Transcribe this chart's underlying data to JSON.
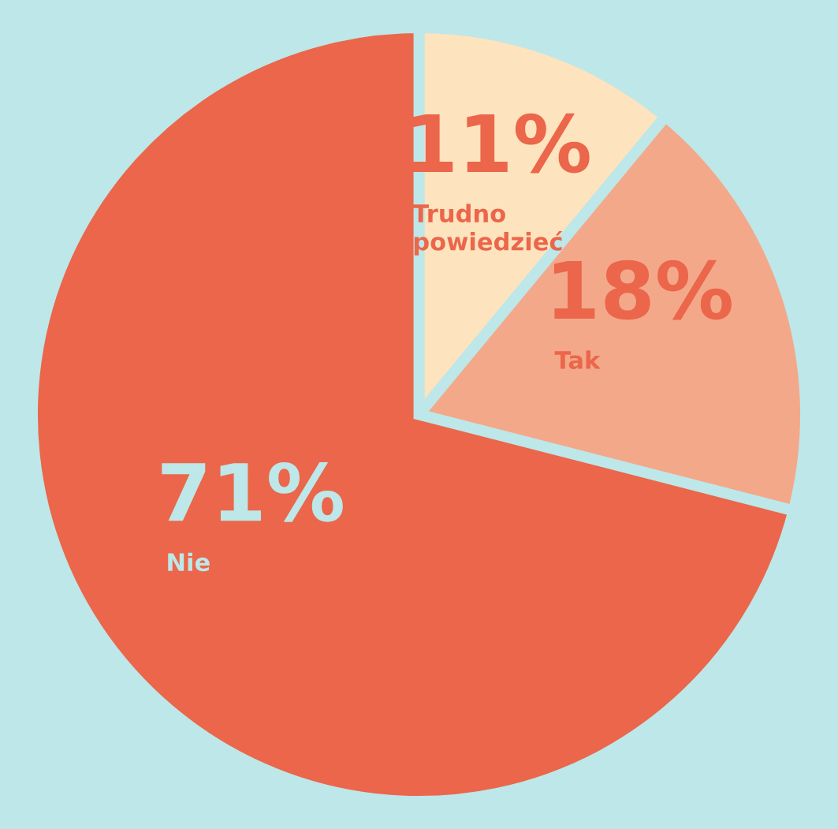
{
  "chart_data": {
    "type": "pie",
    "categories": [
      "Trudno powiedzieć",
      "Tak",
      "Nie"
    ],
    "values": [
      11,
      18,
      71
    ],
    "colors": [
      "#fde3be",
      "#f4a88a",
      "#eb664a"
    ],
    "value_labels": [
      "11%",
      "18%",
      "71%"
    ]
  }
}
